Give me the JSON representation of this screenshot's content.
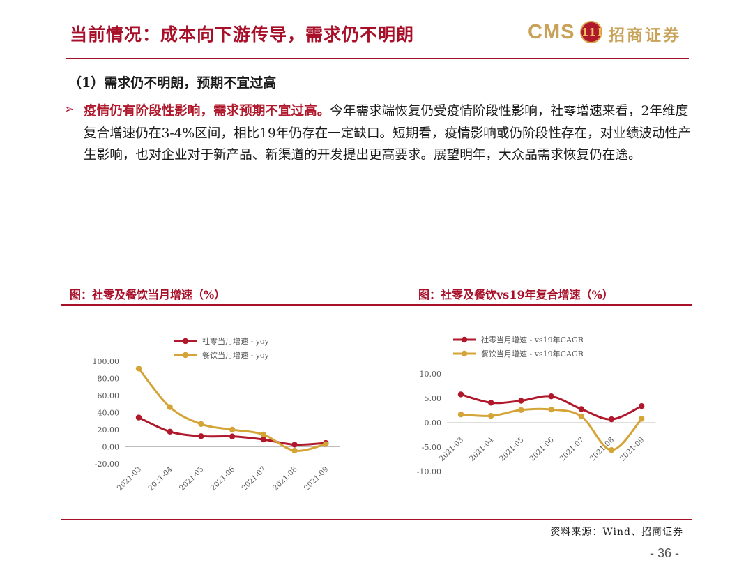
{
  "header": {
    "title": "当前情况：成本向下游传导，需求仍不明朗",
    "logo": {
      "brand": "CMS",
      "seal": "111",
      "company": "招商证券"
    },
    "accent_color": "#a8102a"
  },
  "section": {
    "subtitle": "（1）需求仍不明朗，预期不宜过高",
    "bullet_highlight": "疫情仍有阶段性影响，需求预期不宜过高。",
    "bullet_text": "今年需求端恢复仍受疫情阶段性影响，社零增速来看，2年维度复合增速仍在3-4%区间，相比19年仍存在一定缺口。短期看，疫情影响或仍阶段性存在，对业绩波动性产生影响，也对企业对于新产品、新渠道的开发提出更高要求。展望明年，大众品需求恢复仍在途。"
  },
  "figures": {
    "left_title": "图：社零及餐饮当月增速（%）",
    "right_title": "图：社零及餐饮vs19年复合增速（%）"
  },
  "chart_data": [
    {
      "type": "line",
      "title": "图：社零及餐饮当月增速（%）",
      "categories": [
        "2021-03",
        "2021-04",
        "2021-05",
        "2021-06",
        "2021-07",
        "2021-08",
        "2021-09"
      ],
      "series": [
        {
          "name": "社零当月增速 - yoy",
          "color": "#b0182c",
          "values": [
            34.2,
            17.7,
            12.4,
            12.1,
            8.5,
            2.5,
            4.4
          ]
        },
        {
          "name": "餐饮当月增速 - yoy",
          "color": "#d4a437",
          "values": [
            91.6,
            46.4,
            26.6,
            20.0,
            14.3,
            -4.5,
            3.1
          ]
        }
      ],
      "ylim": [
        -20,
        100
      ],
      "yticks": [
        "100.00",
        "80.00",
        "60.00",
        "40.00",
        "20.00",
        "0.00",
        "-20.00"
      ],
      "legend": "top",
      "grid": false
    },
    {
      "type": "line",
      "title": "图：社零及餐饮vs19年复合增速（%）",
      "categories": [
        "2021-03",
        "2021-04",
        "2021-05",
        "2021-06",
        "2021-07",
        "2021-08",
        "2021-09"
      ],
      "series": [
        {
          "name": "社零当月增速 - vs19年CAGR",
          "color": "#b0182c",
          "values": [
            5.8,
            4.1,
            4.5,
            5.4,
            2.8,
            0.7,
            3.4
          ]
        },
        {
          "name": "餐饮当月增速 - vs19年CAGR",
          "color": "#d4a437",
          "values": [
            1.7,
            1.4,
            2.6,
            2.7,
            1.3,
            -5.6,
            0.8
          ]
        }
      ],
      "ylim": [
        -10,
        10
      ],
      "yticks": [
        "10.00",
        "5.00",
        "0.00",
        "-5.00",
        "-10.00"
      ],
      "legend": "top",
      "grid": false
    }
  ],
  "footer": {
    "source": "资料来源：Wind、招商证券",
    "page": "- 36 -"
  }
}
